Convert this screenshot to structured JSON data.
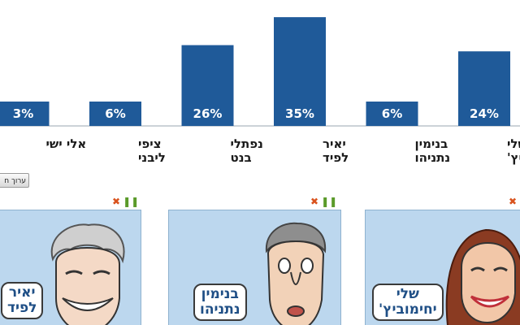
{
  "chart_data": {
    "type": "bar",
    "categories": [
      [
        "שלי",
        "יחימוביץ'"
      ],
      [
        "בנימין",
        "נתניהו"
      ],
      [
        "יאיר",
        "לפיד"
      ],
      [
        "נפתלי",
        "בנט"
      ],
      [
        "ציפי",
        "ליבני"
      ],
      [
        "אלי ישי"
      ]
    ],
    "values": [
      24,
      6,
      35,
      26,
      6,
      3
    ],
    "value_labels": [
      "24%",
      "6%",
      "35%",
      "26%",
      "6%",
      "3%"
    ],
    "unit": "%",
    "ylim": [
      0,
      40
    ],
    "bar_color": "#1f5a99",
    "axis_color": "#9aa6b2",
    "grid": false,
    "legend": "none",
    "title": "",
    "xlabel": "",
    "ylabel": ""
  },
  "edit_button_label": "ערוך ח",
  "cards": [
    {
      "name_lines": [
        "שלי",
        "יחימוביץ'"
      ],
      "skin_color": "#f2c7a8",
      "hair_color": "#8a3b22"
    },
    {
      "name_lines": [
        "בנימין",
        "נתניהו"
      ],
      "skin_color": "#f2d2b8",
      "hair_color": "#8e8e8e"
    },
    {
      "name_lines": [
        "יאיר",
        "לפיד"
      ],
      "skin_color": "#f4d9c6",
      "hair_color": "#cfcfcf"
    }
  ],
  "colors": {
    "card_background": "#bcd7ee",
    "bubble_text": "#1f4f86"
  }
}
